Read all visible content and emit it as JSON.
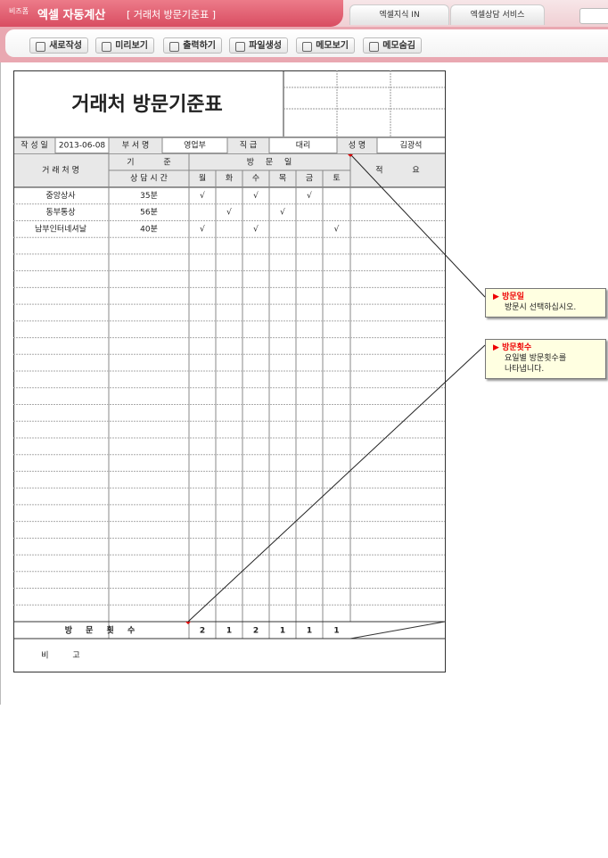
{
  "header": {
    "brand": "비즈폼",
    "app": "엑셀 자동계산",
    "doc": "[ 거래처 방문기준표 ]",
    "tabs": [
      "엑셀지식 IN",
      "엑셀상담 서비스"
    ]
  },
  "toolbar": [
    "새로작성",
    "미리보기",
    "출력하기",
    "파일생성",
    "메모보기",
    "메모숨김"
  ],
  "sheet": {
    "title": "거래처 방문기준표",
    "info": [
      {
        "label": "작 성 일",
        "value": "2013-06-08"
      },
      {
        "label": "부 서 명",
        "value": "영업부"
      },
      {
        "label": "직 급",
        "value": "대리"
      },
      {
        "label": "성 명",
        "value": "김광석"
      }
    ],
    "headers": {
      "client": "거 래 처 명",
      "standard": "기 준",
      "consult_time": "상 담 시 간",
      "visit_day": "방 문 일",
      "days": [
        "월",
        "화",
        "수",
        "목",
        "금",
        "토"
      ],
      "remarks": "적 요"
    },
    "rows": [
      {
        "client": "중앙상사",
        "time": "35분",
        "visits": {
          "월": "√",
          "수": "√",
          "금": "√"
        }
      },
      {
        "client": "동부통상",
        "time": "56분",
        "visits": {
          "화": "√",
          "목": "√"
        }
      },
      {
        "client": "남부인터네셔날",
        "time": "40분",
        "visits": {
          "월": "√",
          "수": "√",
          "토": "√"
        }
      }
    ],
    "total": {
      "label": "방 문 횟 수",
      "values": [
        2,
        1,
        2,
        1,
        1,
        1
      ]
    },
    "note": "비 고"
  },
  "callouts": [
    {
      "title": "방문일",
      "lines": [
        "방문시 선택하십시오."
      ]
    },
    {
      "title": "방문횟수",
      "lines": [
        "요일별 방문횟수를",
        "나타냅니다."
      ]
    }
  ]
}
